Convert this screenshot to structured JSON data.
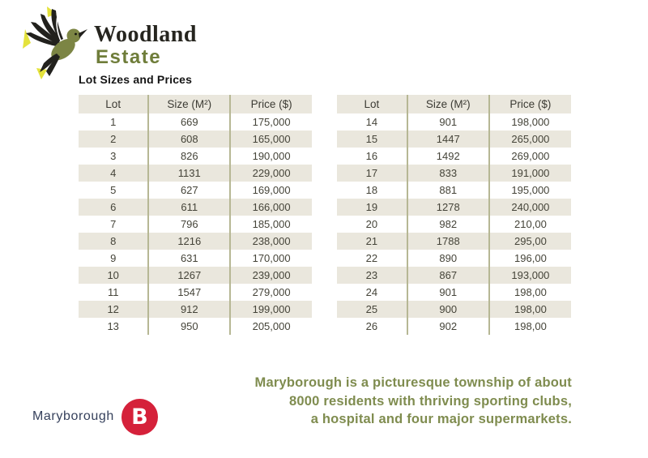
{
  "brand": {
    "name_line1": "Woodland",
    "name_line2": "Estate",
    "logo_icon": "hummingbird-icon",
    "colors": {
      "olive": "#6F7D3A",
      "dark": "#26251F",
      "yellow": "#E4E23C"
    }
  },
  "heading": "Lot Sizes and Prices",
  "table_style": {
    "stripe_color": "#EAE7DD",
    "divider_color": "#B6B794"
  },
  "tables": [
    {
      "columns": [
        "Lot",
        "Size (M²)",
        "Price ($)"
      ],
      "rows": [
        [
          "1",
          "669",
          "175,000"
        ],
        [
          "2",
          "608",
          "165,000"
        ],
        [
          "3",
          "826",
          "190,000"
        ],
        [
          "4",
          "1131",
          "229,000"
        ],
        [
          "5",
          "627",
          "169,000"
        ],
        [
          "6",
          "611",
          "166,000"
        ],
        [
          "7",
          "796",
          "185,000"
        ],
        [
          "8",
          "1216",
          "238,000"
        ],
        [
          "9",
          "631",
          "170,000"
        ],
        [
          "10",
          "1267",
          "239,000"
        ],
        [
          "11",
          "1547",
          "279,000"
        ],
        [
          "12",
          "912",
          "199,000"
        ],
        [
          "13",
          "950",
          "205,000"
        ]
      ]
    },
    {
      "columns": [
        "Lot",
        "Size (M²)",
        "Price ($)"
      ],
      "rows": [
        [
          "14",
          "901",
          "198,000"
        ],
        [
          "15",
          "1447",
          "265,000"
        ],
        [
          "16",
          "1492",
          "269,000"
        ],
        [
          "17",
          "833",
          "191,000"
        ],
        [
          "18",
          "881",
          "195,000"
        ],
        [
          "19",
          "1278",
          "240,000"
        ],
        [
          "20",
          "982",
          "210,00"
        ],
        [
          "21",
          "1788",
          "295,00"
        ],
        [
          "22",
          "890",
          "196,00"
        ],
        [
          "23",
          "867",
          "193,000"
        ],
        [
          "24",
          "901",
          "198,00"
        ],
        [
          "25",
          "900",
          "198,00"
        ],
        [
          "26",
          "902",
          "198,00"
        ]
      ]
    }
  ],
  "footer": {
    "partner_logo": {
      "text": "Maryborough",
      "badge_letter": "B",
      "badge_color": "#D5213A",
      "text_color": "#36415C"
    },
    "blurb_lines": [
      "Maryborough is a picturesque township of about",
      "8000 residents with thriving sporting clubs,",
      "a hospital and four major supermarkets."
    ],
    "blurb_color": "#7F8C4F"
  }
}
